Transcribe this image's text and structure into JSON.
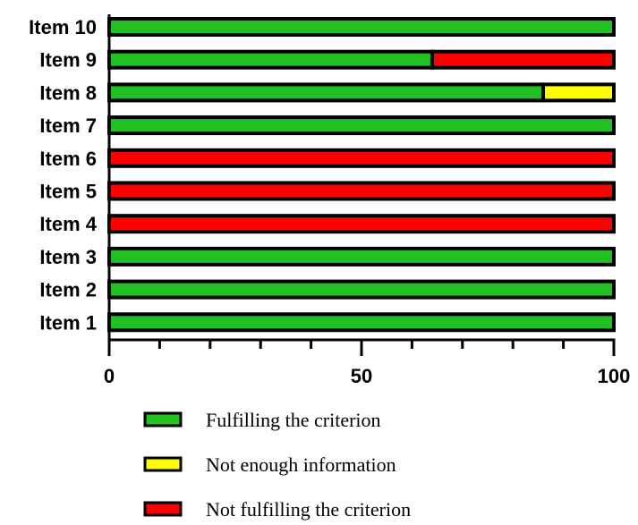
{
  "chart_data": {
    "type": "bar",
    "orientation": "horizontal",
    "stacked": true,
    "categories": [
      "Item 10",
      "Item 9",
      "Item 8",
      "Item 7",
      "Item 6",
      "Item 5",
      "Item 4",
      "Item 3",
      "Item 2",
      "Item 1"
    ],
    "series": [
      {
        "name": "Fulfilling the criterion",
        "color": "#22c022",
        "values": [
          100,
          64,
          86,
          100,
          0,
          0,
          0,
          100,
          100,
          100
        ]
      },
      {
        "name": "Not enough information",
        "color": "#ffff00",
        "values": [
          0,
          0,
          14,
          0,
          0,
          0,
          0,
          0,
          0,
          0
        ]
      },
      {
        "name": "Not fulfilling the criterion",
        "color": "#ff0000",
        "values": [
          0,
          36,
          0,
          0,
          100,
          100,
          100,
          0,
          0,
          0
        ]
      }
    ],
    "xlim": [
      0,
      100
    ],
    "x_ticks": [
      0,
      50,
      100
    ],
    "x_minor_step": 10,
    "legend_position": "bottom",
    "title": "",
    "xlabel": "",
    "ylabel": ""
  }
}
